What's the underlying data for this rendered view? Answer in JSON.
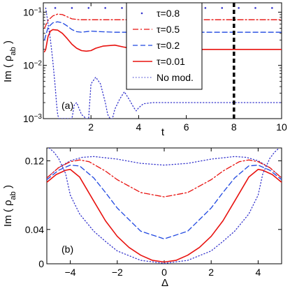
{
  "chart_data": [
    {
      "panel_label": "(a)",
      "type": "line",
      "xlabel": "t",
      "ylabel": "Im ( ρ",
      "ylabel_sub": "ab",
      "ylabel_close": " )",
      "yscale": "log",
      "xlim": [
        0,
        10
      ],
      "ylim": [
        0.001,
        0.15
      ],
      "xticks": [
        2,
        4,
        6,
        8,
        10
      ],
      "xtick_labels": [
        "2",
        "4",
        "6",
        "8",
        "10"
      ],
      "yticks": [
        0.1,
        0.01,
        0.001
      ],
      "ytick_base": "10",
      "ytick_exponents": [
        "−1",
        "−2",
        "−3"
      ],
      "vline": {
        "x": 8,
        "color": "#000000",
        "style": "thick-dashed"
      },
      "legend": {
        "placement": "top-center",
        "entries": [
          {
            "label": "τ=0.8",
            "color": "#3333cc",
            "style": "dots"
          },
          {
            "label": "τ=0.5",
            "color": "#e8120f",
            "style": "dashdot"
          },
          {
            "label": "τ=0.2",
            "color": "#1f47e0",
            "style": "dashed"
          },
          {
            "label": "τ=0.01",
            "color": "#e8120f",
            "style": "solid"
          },
          {
            "label": "No mod.",
            "color": "#3333cc",
            "style": "dotted"
          }
        ]
      },
      "series": [
        {
          "name": "τ=0.8",
          "color": "#3333cc",
          "style": "dots",
          "x": [
            0.5,
            1.2,
            1.9,
            2.6,
            3.3,
            4.0,
            4.7,
            5.4,
            6.1,
            6.8,
            7.5,
            8.2,
            8.9,
            9.6
          ],
          "y": [
            0.12,
            0.12,
            0.12,
            0.12,
            0.12,
            0.12,
            0.12,
            0.12,
            0.12,
            0.12,
            0.12,
            0.12,
            0.12,
            0.12
          ]
        },
        {
          "name": "τ=0.5",
          "color": "#e8120f",
          "style": "dashdot",
          "x": [
            0.05,
            0.2,
            0.4,
            0.6,
            0.8,
            1.0,
            1.2,
            1.5,
            2.0,
            3.0,
            4.0,
            5.0,
            6.0,
            8.0,
            10.0
          ],
          "y": [
            0.05,
            0.07,
            0.085,
            0.092,
            0.09,
            0.082,
            0.075,
            0.072,
            0.072,
            0.072,
            0.072,
            0.072,
            0.072,
            0.072,
            0.072
          ]
        },
        {
          "name": "τ=0.2",
          "color": "#1f47e0",
          "style": "dashed",
          "x": [
            0.05,
            0.2,
            0.4,
            0.6,
            0.8,
            1.0,
            1.2,
            1.4,
            1.6,
            2.0,
            2.4,
            3.0,
            4.0,
            5.0,
            6.0,
            8.0,
            10.0
          ],
          "y": [
            0.03,
            0.052,
            0.063,
            0.066,
            0.063,
            0.055,
            0.047,
            0.043,
            0.042,
            0.044,
            0.043,
            0.042,
            0.042,
            0.042,
            0.042,
            0.042,
            0.042
          ]
        },
        {
          "name": "τ=0.01",
          "color": "#e8120f",
          "style": "solid",
          "x": [
            0.05,
            0.1,
            0.2,
            0.3,
            0.4,
            0.6,
            0.8,
            1.0,
            1.2,
            1.4,
            1.6,
            1.8,
            2.0,
            2.2,
            2.5,
            3.0,
            3.4,
            3.8,
            4.2,
            5.0,
            6.0,
            8.0,
            10.0
          ],
          "y": [
            0.018,
            0.02,
            0.035,
            0.044,
            0.047,
            0.046,
            0.04,
            0.032,
            0.025,
            0.021,
            0.019,
            0.0185,
            0.019,
            0.021,
            0.023,
            0.024,
            0.022,
            0.0205,
            0.02,
            0.02,
            0.02,
            0.02,
            0.02
          ]
        },
        {
          "name": "No mod.",
          "color": "#3333cc",
          "style": "dotted",
          "x": [
            0.1,
            0.2,
            0.3,
            0.4,
            0.5,
            0.55,
            0.6,
            0.65,
            1.2,
            1.3,
            1.4,
            1.6,
            1.8,
            1.9,
            2.0,
            2.2,
            2.4,
            2.6,
            2.7,
            2.8,
            2.9,
            3.0,
            3.2,
            3.4,
            3.6,
            3.8,
            3.9,
            4.0,
            4.2,
            4.6,
            5.0,
            6.0,
            8.0,
            10.0
          ],
          "y": [
            0.12,
            0.06,
            0.03,
            0.012,
            0.004,
            0.002,
            0.0012,
            0.001,
            0.001,
            0.0018,
            0.002,
            0.0012,
            0.001,
            0.001,
            0.0045,
            0.006,
            0.0045,
            0.002,
            0.0012,
            0.001,
            0.001,
            0.0015,
            0.0023,
            0.0032,
            0.0023,
            0.0016,
            0.0014,
            0.0016,
            0.0019,
            0.002,
            0.002,
            0.002,
            0.002,
            0.002
          ]
        }
      ]
    },
    {
      "panel_label": "(b)",
      "type": "line",
      "xlabel": "Δ",
      "ylabel": "Im ( ρ",
      "ylabel_sub": "ab",
      "ylabel_close": " )",
      "xlim": [
        -5,
        5
      ],
      "ylim": [
        0,
        0.135
      ],
      "xticks": [
        -4,
        -2,
        0,
        2,
        4
      ],
      "xtick_labels": [
        "−4",
        "−2",
        "0",
        "2",
        "4"
      ],
      "yticks": [
        0,
        0.04,
        0.12
      ],
      "ytick_labels": [
        "0",
        "0.04",
        "0.12"
      ],
      "series": [
        {
          "name": "τ=0.8",
          "color": "#3333cc",
          "style": "dotted",
          "x": [
            -5,
            -4.5,
            -4,
            -3.5,
            -3,
            -2,
            -1,
            0,
            1,
            2,
            3,
            3.5,
            4,
            4.5,
            5
          ],
          "y": [
            0.1,
            0.112,
            0.12,
            0.124,
            0.125,
            0.122,
            0.117,
            0.115,
            0.117,
            0.122,
            0.125,
            0.124,
            0.12,
            0.112,
            0.1
          ]
        },
        {
          "name": "τ=0.5",
          "color": "#e8120f",
          "style": "dashdot",
          "x": [
            -5,
            -4.5,
            -4,
            -3.6,
            -3.2,
            -2.5,
            -2,
            -1,
            0,
            1,
            2,
            2.5,
            3.2,
            3.6,
            4,
            4.5,
            5
          ],
          "y": [
            0.1,
            0.112,
            0.119,
            0.121,
            0.119,
            0.108,
            0.098,
            0.083,
            0.078,
            0.083,
            0.098,
            0.108,
            0.119,
            0.121,
            0.119,
            0.112,
            0.1
          ]
        },
        {
          "name": "τ=0.2",
          "color": "#1f47e0",
          "style": "dashed",
          "x": [
            -5,
            -4.5,
            -4,
            -3.6,
            -3,
            -2.5,
            -2,
            -1,
            0,
            1,
            2,
            2.5,
            3,
            3.6,
            4,
            4.5,
            5
          ],
          "y": [
            0.098,
            0.109,
            0.115,
            0.114,
            0.1,
            0.083,
            0.065,
            0.038,
            0.029,
            0.038,
            0.065,
            0.083,
            0.1,
            0.114,
            0.115,
            0.109,
            0.098
          ]
        },
        {
          "name": "τ=0.01",
          "color": "#e8120f",
          "style": "solid",
          "x": [
            -5,
            -4.6,
            -4.2,
            -4,
            -3.6,
            -3,
            -2.5,
            -2,
            -1.5,
            -1,
            -0.5,
            0,
            0.5,
            1,
            1.5,
            2,
            2.5,
            3,
            3.6,
            4,
            4.2,
            4.6,
            5
          ],
          "y": [
            0.095,
            0.104,
            0.109,
            0.11,
            0.101,
            0.073,
            0.05,
            0.032,
            0.019,
            0.01,
            0.004,
            0.002,
            0.004,
            0.01,
            0.019,
            0.032,
            0.05,
            0.073,
            0.101,
            0.11,
            0.109,
            0.104,
            0.095
          ]
        },
        {
          "name": "No mod.",
          "color": "#3333cc",
          "style": "dotted",
          "x": [
            -4.9,
            -4.7,
            -4.5,
            -4.2,
            -4,
            -3.6,
            -3,
            -2.5,
            -2,
            -1,
            0,
            1,
            2,
            2.5,
            3,
            3.6,
            4,
            4.2,
            4.5,
            4.7,
            4.9
          ],
          "y": [
            0.135,
            0.13,
            0.123,
            0.105,
            0.08,
            0.058,
            0.038,
            0.026,
            0.015,
            0.004,
            0.0005,
            0.004,
            0.015,
            0.026,
            0.038,
            0.058,
            0.08,
            0.105,
            0.123,
            0.13,
            0.135
          ]
        }
      ]
    }
  ]
}
